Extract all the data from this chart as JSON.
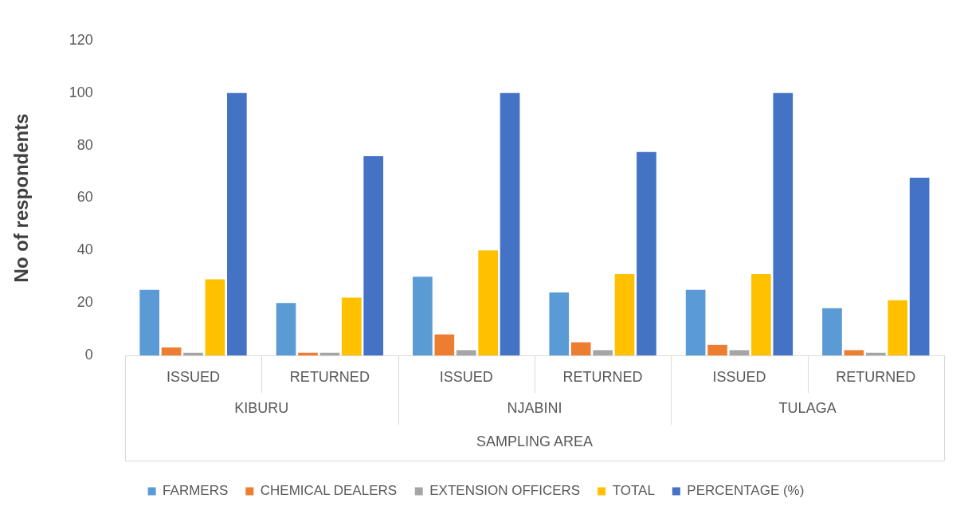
{
  "chart_data": {
    "type": "bar",
    "ylabel": "No of respondents",
    "xlabel": "SAMPLING AREA",
    "categories": [
      "ISSUED",
      "RETURNED",
      "ISSUED",
      "RETURNED",
      "ISSUED",
      "RETURNED"
    ],
    "annotations": [
      "KIBURU",
      "NJABINI",
      "TULAGA"
    ],
    "series": [
      {
        "name": "FARMERS",
        "color": "#5b9bd5",
        "values": [
          25,
          20,
          30,
          24,
          25,
          18
        ]
      },
      {
        "name": "CHEMICAL DEALERS",
        "color": "#ed7d31",
        "values": [
          3,
          1,
          8,
          5,
          4,
          2
        ]
      },
      {
        "name": "EXTENSION OFFICERS",
        "color": "#a5a5a5",
        "values": [
          1,
          1,
          2,
          2,
          2,
          1
        ]
      },
      {
        "name": "TOTAL",
        "color": "#ffc000",
        "values": [
          29,
          22,
          40,
          31,
          31,
          21
        ]
      },
      {
        "name": "PERCENTAGE (%)",
        "color": "#4472c4",
        "values": [
          100,
          75.9,
          100,
          77.5,
          100,
          67.7
        ]
      }
    ],
    "ylim": [
      0,
      120
    ],
    "yticks": [
      0,
      20,
      40,
      60,
      80,
      100,
      120
    ],
    "grid": false,
    "legend": "bottom"
  }
}
